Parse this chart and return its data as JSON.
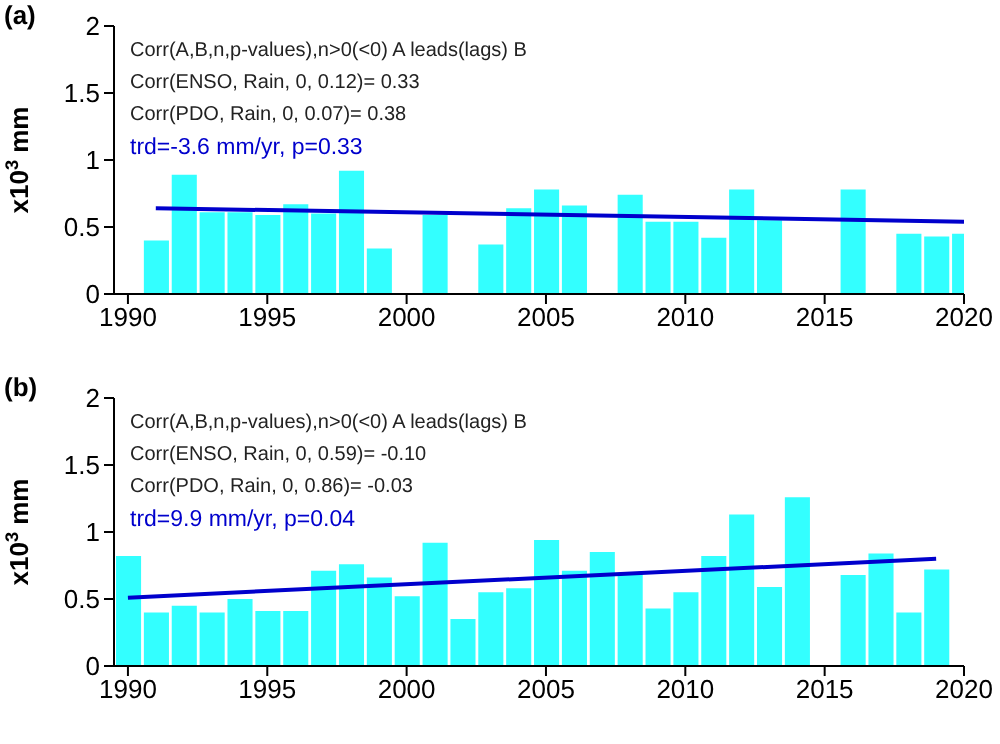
{
  "chart_data": [
    {
      "type": "bar",
      "title": "(a)",
      "ylabel": "x10$^{3}$ mm",
      "x": [
        1991,
        1992,
        1993,
        1994,
        1995,
        1996,
        1997,
        1998,
        1999,
        2000,
        2001,
        2002,
        2003,
        2004,
        2005,
        2006,
        2007,
        2008,
        2009,
        2010,
        2011,
        2012,
        2013,
        2014,
        2015,
        2016,
        2017,
        2018,
        2019,
        2020
      ],
      "xlim": [
        1989.5,
        2020
      ],
      "xticks": [
        1990,
        1995,
        2000,
        2005,
        2010,
        2015,
        2020
      ],
      "ylim": [
        0,
        2
      ],
      "yticks": [
        0,
        0.5,
        1,
        1.5,
        2
      ],
      "annotations": [
        "Corr(A,B,n,p-values),n>0(<0) A leads(lags) B",
        "Corr(ENSO, Rain, 0, 0.12)= 0.33",
        "Corr(PDO, Rain, 0, 0.07)= 0.38",
        "trd=-3.6 mm/yr, p=0.33"
      ],
      "series": [
        {
          "color": "#33ffff",
          "values": [
            0.4,
            0.89,
            0.61,
            0.61,
            0.59,
            0.67,
            0.6,
            0.92,
            0.34,
            null,
            0.59,
            null,
            0.37,
            0.64,
            0.78,
            0.66,
            null,
            0.74,
            0.54,
            0.54,
            0.42,
            0.78,
            0.55,
            null,
            null,
            0.78,
            null,
            0.45,
            0.43,
            0.45
          ]
        },
        {
          "type": "line",
          "color": "#0000cc",
          "x": [
            1991,
            2020
          ],
          "values": [
            0.64,
            0.54
          ]
        }
      ]
    },
    {
      "type": "bar",
      "title": "(b)",
      "ylabel": "x10$^{3}$ mm",
      "x": [
        1990,
        1991,
        1992,
        1993,
        1994,
        1995,
        1996,
        1997,
        1998,
        1999,
        2000,
        2001,
        2002,
        2003,
        2004,
        2005,
        2006,
        2007,
        2008,
        2009,
        2010,
        2011,
        2012,
        2013,
        2014,
        2015,
        2016,
        2017,
        2018,
        2019
      ],
      "xlim": [
        1989.5,
        2020
      ],
      "xticks": [
        1990,
        1995,
        2000,
        2005,
        2010,
        2015,
        2020
      ],
      "ylim": [
        0,
        2
      ],
      "yticks": [
        0,
        0.5,
        1,
        1.5,
        2
      ],
      "annotations": [
        "Corr(A,B,n,p-values),n>0(<0) A leads(lags) B",
        "Corr(ENSO, Rain, 0, 0.59)= -0.10",
        "Corr(PDO, Rain, 0, 0.86)= -0.03",
        "trd=9.9 mm/yr,  p=0.04"
      ],
      "series": [
        {
          "color": "#33ffff",
          "values": [
            0.82,
            0.4,
            0.45,
            0.4,
            0.5,
            0.41,
            0.41,
            0.71,
            0.76,
            0.66,
            0.52,
            0.92,
            0.35,
            0.55,
            0.58,
            0.94,
            0.71,
            0.85,
            0.69,
            0.43,
            0.55,
            0.82,
            1.13,
            0.59,
            1.26,
            null,
            0.68,
            0.84,
            0.4,
            0.72
          ]
        },
        {
          "type": "line",
          "color": "#0000cc",
          "x": [
            1990,
            2019
          ],
          "values": [
            0.51,
            0.8
          ]
        }
      ]
    }
  ]
}
